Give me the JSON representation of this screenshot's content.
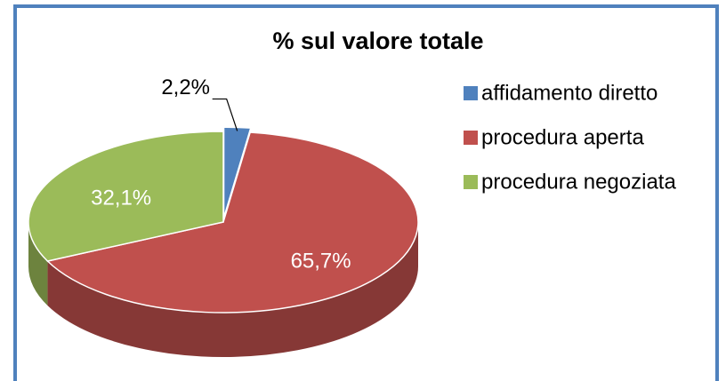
{
  "chart_data": {
    "type": "pie",
    "title": "% sul valore totale",
    "categories": [
      "affidamento diretto",
      "procedura aperta",
      "procedura negoziata"
    ],
    "values": [
      2.2,
      65.7,
      32.1
    ],
    "value_labels": [
      "2,2%",
      "65,7%",
      "32,1%"
    ],
    "colors": [
      "#4f81bd",
      "#c0504d",
      "#9bbb59"
    ],
    "legend": "right"
  }
}
